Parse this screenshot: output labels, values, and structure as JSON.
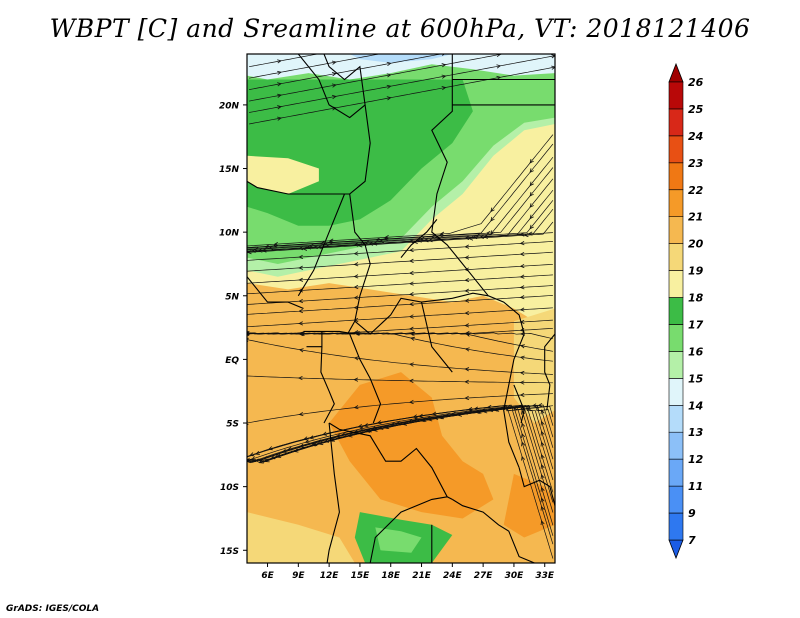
{
  "title": "WBPT [C] and Sreamline at 600hPa, VT: 2018121406",
  "credit": "GrADS: IGES/COLA",
  "map": {
    "lat_labels": [
      "20N",
      "15N",
      "10N",
      "5N",
      "EQ",
      "5S",
      "10S",
      "15S"
    ],
    "lon_labels": [
      "6E",
      "9E",
      "12E",
      "15E",
      "18E",
      "21E",
      "24E",
      "27E",
      "30E",
      "33E"
    ],
    "lon_range": [
      4,
      34
    ],
    "lat_range": [
      -16,
      24
    ],
    "field": "WBPT",
    "units": "C",
    "level": "600hPa",
    "valid_time": "2018121406"
  },
  "colorbar": {
    "levels": [
      "7",
      "9",
      "11",
      "12",
      "13",
      "14",
      "15",
      "16",
      "17",
      "18",
      "19",
      "20",
      "21",
      "22",
      "23",
      "24",
      "25",
      "26"
    ],
    "colors": [
      "#1a5ce6",
      "#2e78f0",
      "#4a90f5",
      "#6aa8f7",
      "#8cc0f8",
      "#b4dcfa",
      "#e0f5fa",
      "#b4f0a8",
      "#78dc6e",
      "#3cbc46",
      "#f8f0a0",
      "#f5d878",
      "#f5b850",
      "#f59a28",
      "#f07814",
      "#e85014",
      "#d82818",
      "#b80808",
      "#a00000"
    ]
  }
}
